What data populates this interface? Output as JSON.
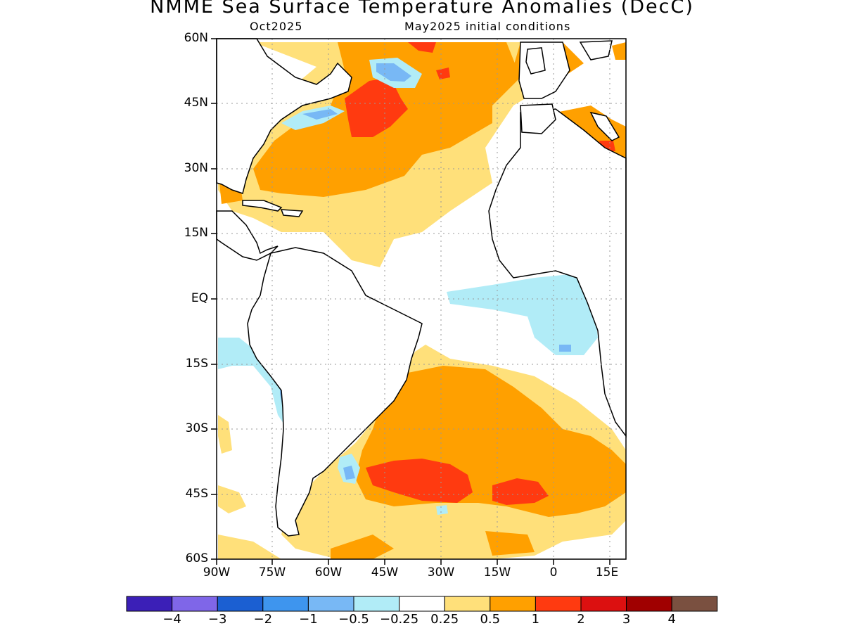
{
  "title": "NMME Sea Surface Temperature Anomalies (DecC)",
  "subtitle_left": "Oct2025",
  "subtitle_right": "May2025 initial conditions",
  "map": {
    "lat_labels": [
      "60N",
      "45N",
      "30N",
      "15N",
      "EQ",
      "15S",
      "30S",
      "45S",
      "60S"
    ],
    "lon_labels": [
      "90W",
      "75W",
      "60W",
      "45W",
      "30W",
      "15W",
      "0",
      "15E"
    ],
    "extent": {
      "lon_min": -90,
      "lon_max": 18,
      "lat_min": -60,
      "lat_max": 60
    }
  },
  "colorbar": {
    "colors": [
      "#3b1fb7",
      "#7f66e8",
      "#1b5fd2",
      "#3e95ee",
      "#78b8f5",
      "#b1ecf7",
      "#ffffff",
      "#ffe07a",
      "#ffa000",
      "#ff3a10",
      "#dc1010",
      "#a00000",
      "#7a5040"
    ],
    "labels": [
      "−4",
      "−3",
      "−2",
      "−1",
      "−0.5",
      "−0.25",
      "0.25",
      "0.5",
      "1",
      "2",
      "3",
      "4"
    ]
  }
}
